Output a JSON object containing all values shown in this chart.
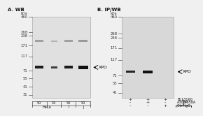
{
  "title_A": "A. WB",
  "title_B": "B. IP/WB",
  "mw_markers_A": [
    460,
    268,
    238,
    171,
    117,
    71,
    55,
    41,
    31
  ],
  "mw_markers_B": [
    460,
    268,
    238,
    171,
    117,
    71,
    55,
    41
  ],
  "blot_bg_A": "#e0e0e0",
  "blot_bg_B": "#d8d8d8",
  "fig_bg": "#f0f0f0",
  "band_dark": "#2a2a2a",
  "band_medium": "#555555",
  "band_light": "#888888",
  "ns_band_color": "#888888",
  "sample_labels_row1": [
    "50",
    "15",
    "50",
    "50"
  ],
  "ip_labels": [
    "BL13160",
    "A303-658A",
    "Ctrl IgG"
  ],
  "ip_dots": [
    [
      "+",
      "+",
      "+"
    ],
    [
      "-",
      "+",
      "-"
    ],
    [
      "-",
      "-",
      "+"
    ]
  ],
  "ip_bracket_label": "IP",
  "font_size_title": 5.0,
  "font_size_mw": 3.8,
  "font_size_sample": 3.6,
  "font_size_xpd": 4.5,
  "font_size_ip": 3.5
}
